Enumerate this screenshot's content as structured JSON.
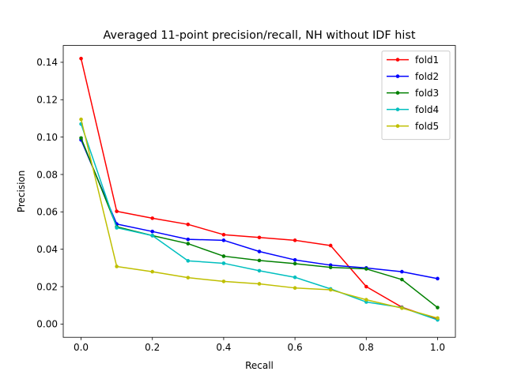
{
  "chart_data": {
    "type": "line",
    "title": "Averaged 11-point precision/recall, NH without IDF hist",
    "xlabel": "Recall",
    "ylabel": "Precision",
    "xlim": [
      -0.05,
      1.05
    ],
    "ylim": [
      -0.0071,
      0.149
    ],
    "xticks": [
      0.0,
      0.2,
      0.4,
      0.6,
      0.8,
      1.0
    ],
    "xtick_labels": [
      "0.0",
      "0.2",
      "0.4",
      "0.6",
      "0.8",
      "1.0"
    ],
    "yticks": [
      0.0,
      0.02,
      0.04,
      0.06,
      0.08,
      0.1,
      0.12,
      0.14
    ],
    "ytick_labels": [
      "0.00",
      "0.02",
      "0.04",
      "0.06",
      "0.08",
      "0.10",
      "0.12",
      "0.14"
    ],
    "grid": false,
    "legend_position": "top-right",
    "x": [
      0.0,
      0.1,
      0.2,
      0.3,
      0.4,
      0.5,
      0.6,
      0.7,
      0.8,
      0.9,
      1.0
    ],
    "series": [
      {
        "name": "fold1",
        "color": "#ff0000",
        "values": [
          0.142,
          0.0603,
          0.0566,
          0.0533,
          0.0478,
          0.0463,
          0.0448,
          0.042,
          0.02,
          0.009,
          0.0025
        ]
      },
      {
        "name": "fold2",
        "color": "#0000ff",
        "values": [
          0.0985,
          0.0535,
          0.0495,
          0.0453,
          0.0448,
          0.0388,
          0.0343,
          0.0315,
          0.03,
          0.028,
          0.0243
        ]
      },
      {
        "name": "fold3",
        "color": "#008000",
        "values": [
          0.0995,
          0.052,
          0.0473,
          0.043,
          0.0363,
          0.034,
          0.0323,
          0.0303,
          0.0295,
          0.0238,
          0.0088
        ]
      },
      {
        "name": "fold4",
        "color": "#00bfbf",
        "values": [
          0.107,
          0.0515,
          0.0473,
          0.0338,
          0.0325,
          0.0285,
          0.025,
          0.0188,
          0.0118,
          0.0088,
          0.0022
        ]
      },
      {
        "name": "fold5",
        "color": "#bfbf00",
        "values": [
          0.1095,
          0.0308,
          0.028,
          0.0248,
          0.0228,
          0.0215,
          0.0193,
          0.0183,
          0.013,
          0.0085,
          0.0032
        ]
      }
    ]
  }
}
